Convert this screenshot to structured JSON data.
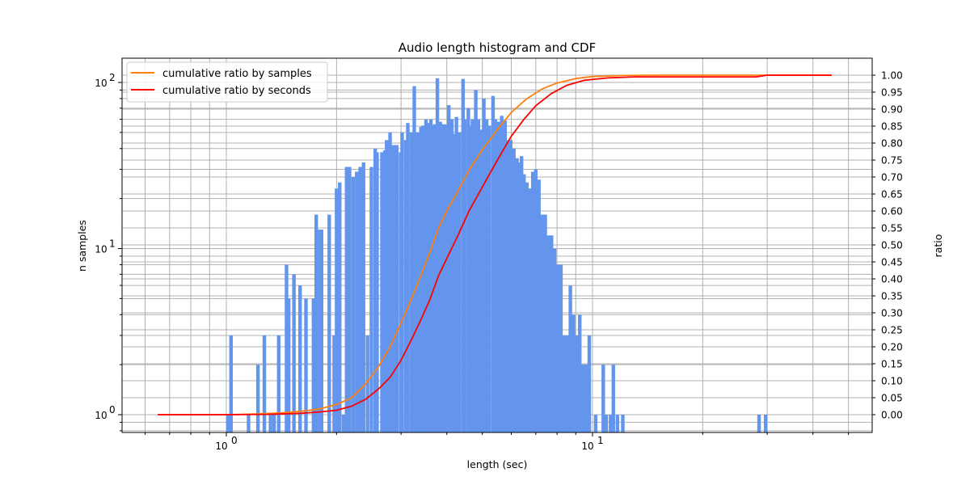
{
  "chart_data": {
    "type": "bar",
    "title": "Audio length histogram and CDF",
    "xlabel": "length (sec)",
    "ylabel": "n samples",
    "y2label": "ratio",
    "xscale": "log",
    "yscale": "log",
    "xlim": [
      0.55,
      55
    ],
    "ylim": [
      0.8,
      140
    ],
    "y2lim": [
      -0.05,
      1.05
    ],
    "grid": true,
    "legend_position": "upper left",
    "x_ticks": [
      {
        "value": 1,
        "label": "10",
        "exp": "0"
      },
      {
        "value": 10,
        "label": "10",
        "exp": "1"
      }
    ],
    "y_ticks": [
      {
        "value": 1,
        "label": "10",
        "exp": "0"
      },
      {
        "value": 10,
        "label": "10",
        "exp": "1"
      },
      {
        "value": 100,
        "label": "10",
        "exp": "2"
      }
    ],
    "y2_ticks": [
      "0.00",
      "0.05",
      "0.10",
      "0.15",
      "0.20",
      "0.25",
      "0.30",
      "0.35",
      "0.40",
      "0.45",
      "0.50",
      "0.55",
      "0.60",
      "0.65",
      "0.70",
      "0.75",
      "0.80",
      "0.85",
      "0.90",
      "0.95",
      "1.00"
    ],
    "histogram": {
      "name": "n samples",
      "color": "#6495ED",
      "bin_width_log10": 0.0097,
      "bars": [
        [
          1.01,
          1
        ],
        [
          1.03,
          3
        ],
        [
          1.15,
          1
        ],
        [
          1.22,
          2
        ],
        [
          1.27,
          3
        ],
        [
          1.32,
          1
        ],
        [
          1.35,
          1
        ],
        [
          1.39,
          3
        ],
        [
          1.46,
          8
        ],
        [
          1.48,
          5
        ],
        [
          1.53,
          7
        ],
        [
          1.59,
          6
        ],
        [
          1.65,
          5
        ],
        [
          1.73,
          5
        ],
        [
          1.76,
          16
        ],
        [
          1.8,
          13
        ],
        [
          1.82,
          13
        ],
        [
          1.91,
          16
        ],
        [
          1.97,
          3
        ],
        [
          2.0,
          23
        ],
        [
          2.04,
          25
        ],
        [
          2.09,
          1
        ],
        [
          2.13,
          31
        ],
        [
          2.17,
          31
        ],
        [
          2.22,
          27
        ],
        [
          2.27,
          29
        ],
        [
          2.32,
          31
        ],
        [
          2.37,
          33
        ],
        [
          2.43,
          3
        ],
        [
          2.49,
          31
        ],
        [
          2.55,
          40
        ],
        [
          2.58,
          38
        ],
        [
          2.66,
          38
        ],
        [
          2.71,
          39
        ],
        [
          2.74,
          45
        ],
        [
          2.8,
          50
        ],
        [
          2.86,
          42
        ],
        [
          2.92,
          42
        ],
        [
          2.99,
          38
        ],
        [
          3.02,
          50
        ],
        [
          3.09,
          45
        ],
        [
          3.13,
          57
        ],
        [
          3.2,
          50
        ],
        [
          3.26,
          95
        ],
        [
          3.33,
          50
        ],
        [
          3.4,
          54
        ],
        [
          3.44,
          55
        ],
        [
          3.51,
          60
        ],
        [
          3.55,
          57
        ],
        [
          3.62,
          60
        ],
        [
          3.66,
          55
        ],
        [
          3.71,
          56
        ],
        [
          3.77,
          106
        ],
        [
          3.84,
          58
        ],
        [
          3.88,
          56
        ],
        [
          3.96,
          56
        ],
        [
          4.05,
          73
        ],
        [
          4.13,
          60
        ],
        [
          4.17,
          49
        ],
        [
          4.25,
          62
        ],
        [
          4.33,
          50
        ],
        [
          4.43,
          105
        ],
        [
          4.48,
          60
        ],
        [
          4.58,
          70
        ],
        [
          4.62,
          55
        ],
        [
          4.7,
          60
        ],
        [
          4.8,
          90
        ],
        [
          4.88,
          60
        ],
        [
          4.95,
          52
        ],
        [
          5.05,
          80
        ],
        [
          5.14,
          60
        ],
        [
          5.23,
          55
        ],
        [
          5.35,
          83
        ],
        [
          5.43,
          60
        ],
        [
          5.55,
          58
        ],
        [
          5.65,
          63
        ],
        [
          5.77,
          59
        ],
        [
          5.88,
          45
        ],
        [
          5.98,
          45
        ],
        [
          6.1,
          40
        ],
        [
          6.22,
          35
        ],
        [
          6.3,
          33
        ],
        [
          6.4,
          36
        ],
        [
          6.5,
          28
        ],
        [
          6.62,
          25
        ],
        [
          6.74,
          23
        ],
        [
          6.87,
          29
        ],
        [
          7.0,
          30
        ],
        [
          7.14,
          26
        ],
        [
          7.28,
          16
        ],
        [
          7.43,
          16
        ],
        [
          7.58,
          12
        ],
        [
          7.73,
          12
        ],
        [
          7.88,
          10
        ],
        [
          8.04,
          8
        ],
        [
          8.2,
          8
        ],
        [
          8.37,
          3
        ],
        [
          8.53,
          3
        ],
        [
          8.7,
          6
        ],
        [
          8.88,
          4
        ],
        [
          9.05,
          3
        ],
        [
          9.23,
          4
        ],
        [
          9.42,
          2
        ],
        [
          9.61,
          2
        ],
        [
          9.8,
          3
        ],
        [
          10.2,
          1
        ],
        [
          10.7,
          2
        ],
        [
          10.9,
          1
        ],
        [
          11.2,
          1
        ],
        [
          11.4,
          2
        ],
        [
          11.7,
          1
        ],
        [
          12.1,
          1
        ],
        [
          28.5,
          1
        ],
        [
          29.7,
          1
        ]
      ]
    },
    "series": [
      {
        "name": "cumulative ratio by samples",
        "color": "#ff7f0e",
        "points": [
          [
            0.65,
            0.0
          ],
          [
            1.0,
            0.0
          ],
          [
            1.2,
            0.002
          ],
          [
            1.4,
            0.005
          ],
          [
            1.6,
            0.01
          ],
          [
            1.8,
            0.017
          ],
          [
            2.0,
            0.03
          ],
          [
            2.2,
            0.05
          ],
          [
            2.4,
            0.09
          ],
          [
            2.6,
            0.14
          ],
          [
            2.8,
            0.2
          ],
          [
            3.0,
            0.27
          ],
          [
            3.2,
            0.34
          ],
          [
            3.4,
            0.41
          ],
          [
            3.6,
            0.48
          ],
          [
            3.8,
            0.55
          ],
          [
            4.0,
            0.6
          ],
          [
            4.3,
            0.66
          ],
          [
            4.6,
            0.72
          ],
          [
            5.0,
            0.78
          ],
          [
            5.5,
            0.84
          ],
          [
            6.0,
            0.89
          ],
          [
            6.6,
            0.93
          ],
          [
            7.3,
            0.96
          ],
          [
            8.0,
            0.977
          ],
          [
            9.0,
            0.99
          ],
          [
            10.0,
            0.996
          ],
          [
            12.0,
            0.999
          ],
          [
            15.0,
            1.0
          ],
          [
            29.0,
            1.0
          ],
          [
            45.0,
            1.0
          ]
        ]
      },
      {
        "name": "cumulative ratio by seconds",
        "color": "#ff0000",
        "points": [
          [
            0.65,
            0.0
          ],
          [
            1.0,
            0.0
          ],
          [
            1.3,
            0.001
          ],
          [
            1.6,
            0.004
          ],
          [
            1.8,
            0.008
          ],
          [
            2.0,
            0.013
          ],
          [
            2.2,
            0.025
          ],
          [
            2.4,
            0.045
          ],
          [
            2.6,
            0.075
          ],
          [
            2.8,
            0.11
          ],
          [
            3.0,
            0.16
          ],
          [
            3.2,
            0.22
          ],
          [
            3.4,
            0.28
          ],
          [
            3.6,
            0.34
          ],
          [
            3.8,
            0.41
          ],
          [
            4.0,
            0.46
          ],
          [
            4.3,
            0.53
          ],
          [
            4.6,
            0.6
          ],
          [
            5.0,
            0.67
          ],
          [
            5.5,
            0.75
          ],
          [
            6.0,
            0.82
          ],
          [
            6.5,
            0.87
          ],
          [
            7.0,
            0.91
          ],
          [
            7.7,
            0.945
          ],
          [
            8.5,
            0.97
          ],
          [
            9.5,
            0.985
          ],
          [
            11.0,
            0.992
          ],
          [
            13.0,
            0.995
          ],
          [
            20.0,
            0.995
          ],
          [
            28.0,
            0.995
          ],
          [
            30.0,
            1.0
          ],
          [
            45.0,
            1.0
          ]
        ]
      }
    ]
  },
  "legend": {
    "items": [
      {
        "label": "cumulative ratio by samples",
        "color": "#ff7f0e"
      },
      {
        "label": "cumulative ratio by seconds",
        "color": "#ff0000"
      }
    ]
  }
}
